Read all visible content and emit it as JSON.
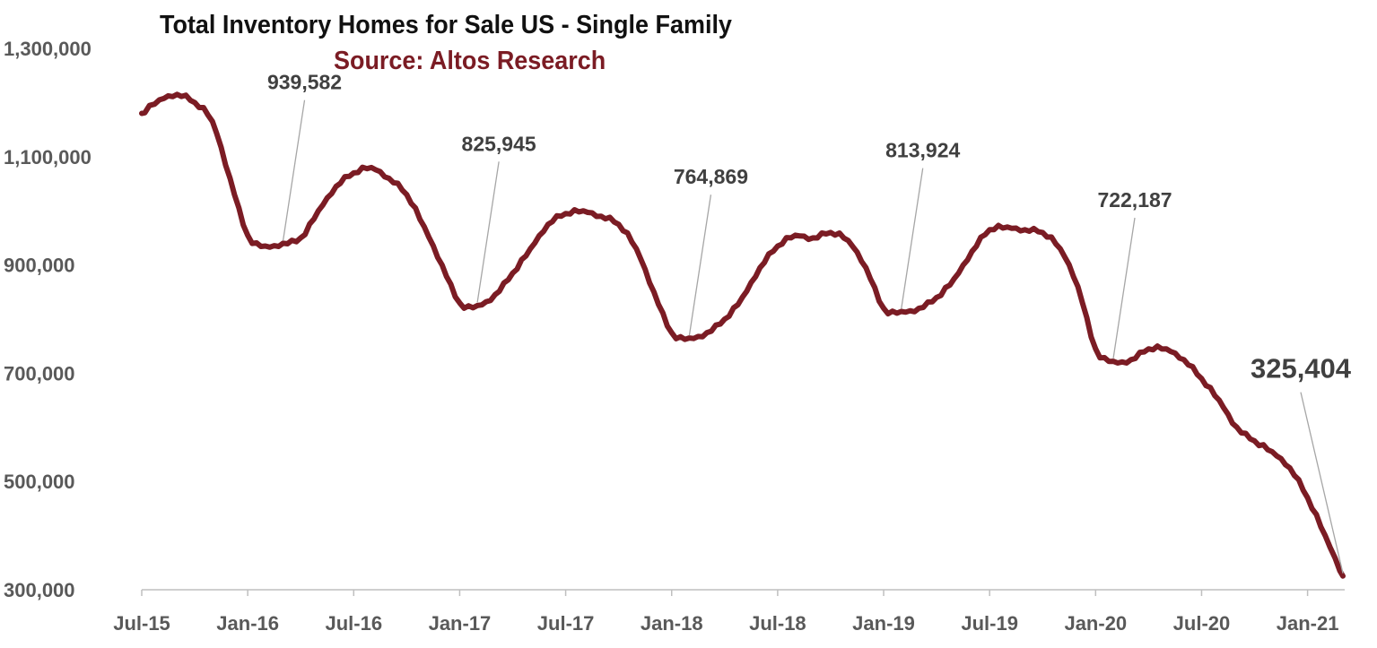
{
  "chart_data": {
    "type": "line",
    "title": "Total Inventory Homes for Sale US - Single Family",
    "subtitle": "Source: Altos Research",
    "line_color": "#7b1c24",
    "ylim": [
      300000,
      1300000
    ],
    "y_ticks": [
      "300,000",
      "500,000",
      "700,000",
      "900,000",
      "1,100,000",
      "1,300,000"
    ],
    "y_tick_values": [
      300000,
      500000,
      700000,
      900000,
      1100000,
      1300000
    ],
    "x_ticks": [
      "Jul-15",
      "Jan-16",
      "Jul-16",
      "Jan-17",
      "Jul-17",
      "Jan-18",
      "Jul-18",
      "Jan-19",
      "Jul-19",
      "Jan-20",
      "Jul-20",
      "Jan-21"
    ],
    "grid": false,
    "series": [
      {
        "x": [
          "Jul-15",
          "Aug-15",
          "Sep-15",
          "Oct-15",
          "Nov-15",
          "Dec-15",
          "Jan-16",
          "Feb-16",
          "Mar-16",
          "Apr-16",
          "May-16",
          "Jun-16",
          "Jul-16",
          "Aug-16",
          "Sep-16",
          "Oct-16",
          "Nov-16",
          "Dec-16",
          "Jan-17",
          "Feb-17",
          "Mar-17",
          "Apr-17",
          "May-17",
          "Jun-17",
          "Jul-17",
          "Aug-17",
          "Sep-17",
          "Oct-17",
          "Nov-17",
          "Dec-17",
          "Jan-18",
          "Feb-18",
          "Mar-18",
          "Apr-18",
          "May-18",
          "Jun-18",
          "Jul-18",
          "Aug-18",
          "Sep-18",
          "Oct-18",
          "Nov-18",
          "Dec-18",
          "Jan-19",
          "Feb-19",
          "Mar-19",
          "Apr-19",
          "May-19",
          "Jun-19",
          "Jul-19",
          "Aug-19",
          "Sep-19",
          "Oct-19",
          "Nov-19",
          "Dec-19",
          "Jan-20",
          "Feb-20",
          "Mar-20",
          "Apr-20",
          "May-20",
          "Jun-20",
          "Jul-20",
          "Aug-20",
          "Sep-20",
          "Oct-20",
          "Nov-20",
          "Dec-20",
          "Jan-21",
          "Feb-21",
          "Mar-21"
        ],
        "values": [
          1180000,
          1205000,
          1215000,
          1200000,
          1165000,
          1060000,
          955000,
          935000,
          940000,
          950000,
          1000000,
          1045000,
          1070000,
          1080000,
          1060000,
          1030000,
          970000,
          900000,
          830000,
          825000,
          845000,
          885000,
          930000,
          975000,
          995000,
          1000000,
          990000,
          975000,
          930000,
          850000,
          775000,
          765000,
          775000,
          800000,
          840000,
          895000,
          935000,
          955000,
          950000,
          960000,
          945000,
          895000,
          820000,
          814000,
          820000,
          840000,
          875000,
          925000,
          965000,
          970000,
          965000,
          960000,
          930000,
          860000,
          745000,
          722000,
          725000,
          745000,
          745000,
          725000,
          690000,
          650000,
          600000,
          575000,
          555000,
          525000,
          470000,
          400000,
          325404
        ]
      }
    ],
    "annotations": [
      {
        "x": "Mar-16",
        "y": 939582,
        "text": "939,582"
      },
      {
        "x": "Feb-17",
        "y": 825945,
        "text": "825,945"
      },
      {
        "x": "Feb-18",
        "y": 764869,
        "text": "764,869"
      },
      {
        "x": "Feb-19",
        "y": 813924,
        "text": "813,924"
      },
      {
        "x": "Feb-20",
        "y": 722187,
        "text": "722,187"
      },
      {
        "x": "Mar-21",
        "y": 325404,
        "text": "325,404"
      }
    ]
  }
}
